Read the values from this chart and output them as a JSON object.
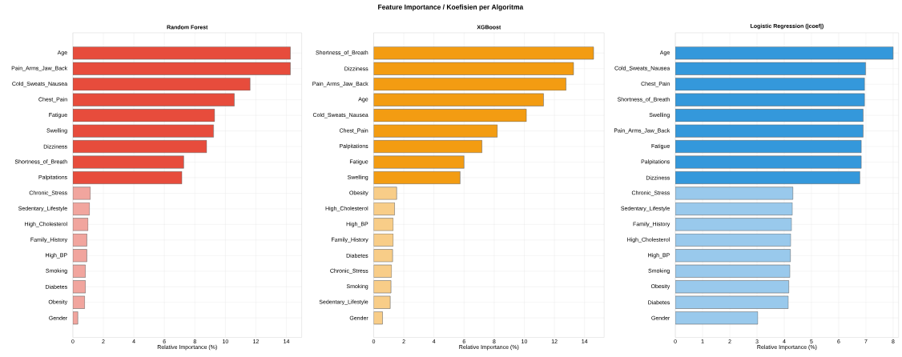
{
  "chart_data": [
    {
      "type": "bar",
      "orientation": "horizontal",
      "title": "Random Forest",
      "xlabel": "Relative Importance (%)",
      "annotations": [
        "Feature Importance / Koefisien per Algoritma"
      ],
      "grid": true,
      "categories": [
        "Age",
        "Pain_Arms_Jaw_Back",
        "Cold_Sweats_Nausea",
        "Chest_Pain",
        "Fatigue",
        "Swelling",
        "Dizziness",
        "Shortness_of_Breath",
        "Palpitations",
        "Chronic_Stress",
        "Sedentary_Lifestyle",
        "High_Cholesterol",
        "Family_History",
        "High_BP",
        "Smoking",
        "Diabetes",
        "Obesity",
        "Gender"
      ],
      "values": [
        14.26,
        14.26,
        11.62,
        10.59,
        9.29,
        9.23,
        8.77,
        7.27,
        7.15,
        1.15,
        1.1,
        1.0,
        0.92,
        0.92,
        0.83,
        0.83,
        0.78,
        0.33
      ],
      "colors": [
        "#e74c3c",
        "#e74c3c",
        "#e74c3c",
        "#e74c3c",
        "#e74c3c",
        "#e74c3c",
        "#e74c3c",
        "#e74c3c",
        "#e74c3c",
        "#f1a59e",
        "#f1a59e",
        "#f1a59e",
        "#f1a59e",
        "#f1a59e",
        "#f1a59e",
        "#f1a59e",
        "#f1a59e",
        "#f1a59e"
      ],
      "xlim": [
        0,
        15
      ],
      "xticks": [
        0,
        2,
        4,
        6,
        8,
        10,
        12,
        14
      ]
    },
    {
      "type": "bar",
      "orientation": "horizontal",
      "title": "XGBoost",
      "xlabel": "Relative Importance (%)",
      "grid": true,
      "categories": [
        "Shortness_of_Breath",
        "Dizziness",
        "Pain_Arms_Jaw_Back",
        "Age",
        "Cold_Sweats_Nausea",
        "Chest_Pain",
        "Palpitations",
        "Fatigue",
        "Swelling",
        "Obesity",
        "High_Cholesterol",
        "High_BP",
        "Family_History",
        "Diabetes",
        "Chronic_Stress",
        "Smoking",
        "Sedentary_Lifestyle",
        "Gender"
      ],
      "values": [
        14.6,
        13.27,
        12.77,
        11.28,
        10.14,
        8.21,
        7.19,
        6.0,
        5.74,
        1.53,
        1.39,
        1.3,
        1.3,
        1.26,
        1.19,
        1.15,
        1.1,
        0.59
      ],
      "colors": [
        "#f39c12",
        "#f39c12",
        "#f39c12",
        "#f39c12",
        "#f39c12",
        "#f39c12",
        "#f39c12",
        "#f39c12",
        "#f39c12",
        "#f8cd88",
        "#f8cd88",
        "#f8cd88",
        "#f8cd88",
        "#f8cd88",
        "#f8cd88",
        "#f8cd88",
        "#f8cd88",
        "#f8cd88"
      ],
      "xlim": [
        0,
        15.3
      ],
      "xticks": [
        0,
        2,
        4,
        6,
        8,
        10,
        12,
        14
      ]
    },
    {
      "type": "bar",
      "orientation": "horizontal",
      "title": "Logistic Regression (|coef|)",
      "xlabel": "Relative Importance (%)",
      "grid": true,
      "categories": [
        "Age",
        "Cold_Sweats_Nausea",
        "Chest_Pain",
        "Shortness_of_Breath",
        "Swelling",
        "Pain_Arms_Jaw_Back",
        "Fatigue",
        "Palpitations",
        "Dizziness",
        "Chronic_Stress",
        "Sedentary_Lifestyle",
        "Family_History",
        "High_Cholesterol",
        "High_BP",
        "Smoking",
        "Obesity",
        "Diabetes",
        "Gender"
      ],
      "values": [
        8.0,
        6.99,
        6.95,
        6.95,
        6.9,
        6.9,
        6.83,
        6.83,
        6.78,
        4.32,
        4.3,
        4.27,
        4.24,
        4.23,
        4.21,
        4.17,
        4.15,
        3.03
      ],
      "colors": [
        "#3498db",
        "#3498db",
        "#3498db",
        "#3498db",
        "#3498db",
        "#3498db",
        "#3498db",
        "#3498db",
        "#3498db",
        "#99c9ec",
        "#99c9ec",
        "#99c9ec",
        "#99c9ec",
        "#99c9ec",
        "#99c9ec",
        "#99c9ec",
        "#99c9ec",
        "#99c9ec"
      ],
      "xlim": [
        0,
        8.2
      ],
      "xticks": [
        0,
        1,
        2,
        3,
        4,
        5,
        6,
        7,
        8
      ]
    }
  ]
}
